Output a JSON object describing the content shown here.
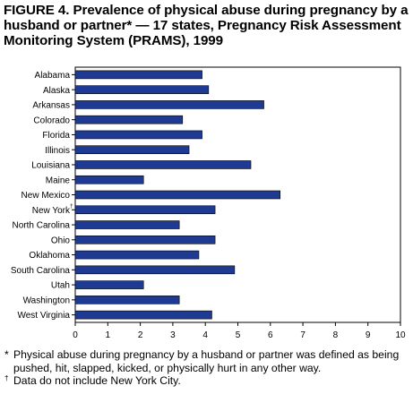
{
  "title": "FIGURE 4. Prevalence of physical abuse during pregnancy by a husband or partner* — 17 states, Pregnancy Risk Assessment Monitoring System (PRAMS), 1999",
  "chart_data": {
    "type": "bar",
    "orientation": "horizontal",
    "categories": [
      "Alabama",
      "Alaska",
      "Arkansas",
      "Colorado",
      "Florida",
      "Illinois",
      "Louisiana",
      "Maine",
      "New Mexico",
      "New York",
      "North Carolina",
      "Ohio",
      "Oklahoma",
      "South Carolina",
      "Utah",
      "Washington",
      "West Virginia"
    ],
    "category_notes": {
      "New York": "†"
    },
    "values": [
      3.9,
      4.1,
      5.8,
      3.3,
      3.9,
      3.5,
      5.4,
      2.1,
      6.3,
      4.3,
      3.2,
      4.3,
      3.8,
      4.9,
      2.1,
      3.2,
      4.2
    ],
    "xlim": [
      0,
      10
    ],
    "xticks": [
      0,
      1,
      2,
      3,
      4,
      5,
      6,
      7,
      8,
      9,
      10
    ],
    "bar_color": "#1f3a93",
    "grid": false,
    "xlabel": "",
    "ylabel": ""
  },
  "footnotes": [
    {
      "mark": "*",
      "text": "Physical abuse during pregnancy by a husband or partner was defined as being pushed, hit, slapped, kicked, or physically hurt in any other way."
    },
    {
      "mark": "†",
      "text": "Data do not include New York City."
    }
  ]
}
